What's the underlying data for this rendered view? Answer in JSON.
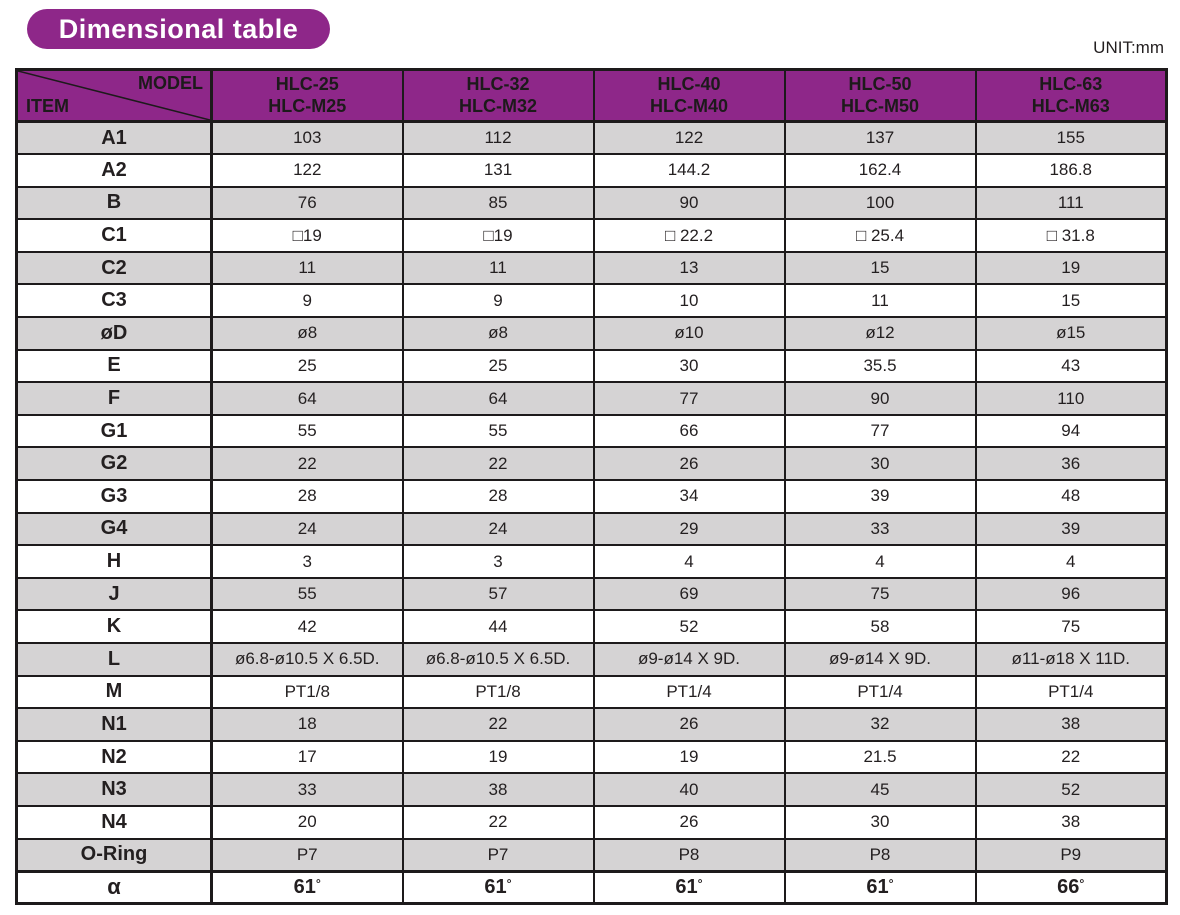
{
  "page": {
    "title": "Dimensional table",
    "unit_label": "UNIT:mm"
  },
  "colors": {
    "accent_purple": "#8e2789",
    "row_gray": "#d5d3d4",
    "row_white": "#ffffff",
    "border_black": "#1d1a1b",
    "title_text": "#ffffff"
  },
  "table": {
    "corner": {
      "top_label": "MODEL",
      "bottom_label": "ITEM"
    },
    "columns": [
      {
        "line1": "HLC-25",
        "line2": "HLC-M25"
      },
      {
        "line1": "HLC-32",
        "line2": "HLC-M32"
      },
      {
        "line1": "HLC-40",
        "line2": "HLC-M40"
      },
      {
        "line1": "HLC-50",
        "line2": "HLC-M50"
      },
      {
        "line1": "HLC-63",
        "line2": "HLC-M63"
      }
    ],
    "rows": [
      {
        "item": "A1",
        "values": [
          "103",
          "112",
          "122",
          "137",
          "155"
        ]
      },
      {
        "item": "A2",
        "values": [
          "122",
          "131",
          "144.2",
          "162.4",
          "186.8"
        ]
      },
      {
        "item": "B",
        "values": [
          "76",
          "85",
          "90",
          "100",
          "111"
        ]
      },
      {
        "item": "C1",
        "values": [
          "□19",
          "□19",
          "□ 22.2",
          "□ 25.4",
          "□ 31.8"
        ]
      },
      {
        "item": "C2",
        "values": [
          "11",
          "11",
          "13",
          "15",
          "19"
        ]
      },
      {
        "item": "C3",
        "values": [
          "9",
          "9",
          "10",
          "11",
          "15"
        ]
      },
      {
        "item": "øD",
        "values": [
          "ø8",
          "ø8",
          "ø10",
          "ø12",
          "ø15"
        ]
      },
      {
        "item": "E",
        "values": [
          "25",
          "25",
          "30",
          "35.5",
          "43"
        ]
      },
      {
        "item": "F",
        "values": [
          "64",
          "64",
          "77",
          "90",
          "110"
        ]
      },
      {
        "item": "G1",
        "values": [
          "55",
          "55",
          "66",
          "77",
          "94"
        ]
      },
      {
        "item": "G2",
        "values": [
          "22",
          "22",
          "26",
          "30",
          "36"
        ]
      },
      {
        "item": "G3",
        "values": [
          "28",
          "28",
          "34",
          "39",
          "48"
        ]
      },
      {
        "item": "G4",
        "values": [
          "24",
          "24",
          "29",
          "33",
          "39"
        ]
      },
      {
        "item": "H",
        "values": [
          "3",
          "3",
          "4",
          "4",
          "4"
        ]
      },
      {
        "item": "J",
        "values": [
          "55",
          "57",
          "69",
          "75",
          "96"
        ]
      },
      {
        "item": "K",
        "values": [
          "42",
          "44",
          "52",
          "58",
          "75"
        ]
      },
      {
        "item": "L",
        "values": [
          "ø6.8-ø10.5 X 6.5D.",
          "ø6.8-ø10.5 X 6.5D.",
          "ø9-ø14 X 9D.",
          "ø9-ø14 X 9D.",
          "ø11-ø18 X 11D."
        ]
      },
      {
        "item": "M",
        "values": [
          "PT1/8",
          "PT1/8",
          "PT1/4",
          "PT1/4",
          "PT1/4"
        ]
      },
      {
        "item": "N1",
        "values": [
          "18",
          "22",
          "26",
          "32",
          "38"
        ]
      },
      {
        "item": "N2",
        "values": [
          "17",
          "19",
          "19",
          "21.5",
          "22"
        ]
      },
      {
        "item": "N3",
        "values": [
          "33",
          "38",
          "40",
          "45",
          "52"
        ]
      },
      {
        "item": "N4",
        "values": [
          "20",
          "22",
          "26",
          "30",
          "38"
        ]
      },
      {
        "item": "O-Ring",
        "values": [
          "P7",
          "P7",
          "P8",
          "P8",
          "P9"
        ]
      },
      {
        "item": "α",
        "values": [
          "61°",
          "61°",
          "61°",
          "61°",
          "66°"
        ],
        "emphasis": true
      }
    ]
  }
}
